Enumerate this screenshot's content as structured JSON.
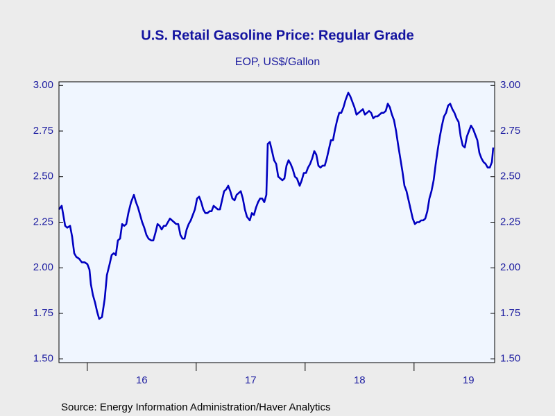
{
  "chart_data": {
    "type": "line",
    "title": "U.S. Retail Gasoline Price: Regular Grade",
    "subtitle": "EOP, US$/Gallon",
    "source": "Source:  Energy Information Administration/Haver Analytics",
    "color": "#0000c0",
    "xlim": [
      2015.74,
      2019.74
    ],
    "xticks": [
      {
        "value": 2016,
        "label": "16"
      },
      {
        "value": 2017,
        "label": "17"
      },
      {
        "value": 2018,
        "label": "18"
      },
      {
        "value": 2019,
        "label": "19"
      }
    ],
    "ylim": [
      1.48,
      3.02
    ],
    "yticks": [
      {
        "value": 1.5,
        "label": "1.50"
      },
      {
        "value": 1.75,
        "label": "1.75"
      },
      {
        "value": 2,
        "label": "2.00"
      },
      {
        "value": 2.25,
        "label": "2.25"
      },
      {
        "value": 2.5,
        "label": "2.50"
      },
      {
        "value": 2.75,
        "label": "2.75"
      },
      {
        "value": 3,
        "label": "3.00"
      }
    ],
    "y2lim": [
      1.48,
      3.02
    ],
    "y2ticks": [
      {
        "value": 1.5,
        "label": "1.50"
      },
      {
        "value": 1.75,
        "label": "1.75"
      },
      {
        "value": 2,
        "label": "2.00"
      },
      {
        "value": 2.25,
        "label": "2.25"
      },
      {
        "value": 2.5,
        "label": "2.50"
      },
      {
        "value": 2.75,
        "label": "2.75"
      },
      {
        "value": 3,
        "label": "3.00"
      }
    ],
    "x": [
      2015.74,
      2015.765,
      2015.797,
      2015.816,
      2015.842,
      2015.861,
      2015.88,
      2015.899,
      2015.925,
      2015.95,
      2015.976,
      2016.001,
      2016.02,
      2016.033,
      2016.052,
      2016.071,
      2016.09,
      2016.109,
      2016.135,
      2016.16,
      2016.18,
      2016.205,
      2016.224,
      2016.243,
      2016.262,
      2016.281,
      2016.301,
      2016.32,
      2016.339,
      2016.358,
      2016.377,
      2016.402,
      2016.428,
      2016.447,
      2016.466,
      2016.485,
      2016.504,
      2016.523,
      2016.543,
      2016.562,
      2016.587,
      2016.606,
      2016.625,
      2016.645,
      2016.664,
      2016.683,
      2016.702,
      2016.721,
      2016.74,
      2016.759,
      2016.778,
      2016.797,
      2016.816,
      2016.835,
      2016.855,
      2016.874,
      2016.893,
      2016.912,
      2016.931,
      2016.95,
      2016.969,
      2016.988,
      2017.008,
      2017.027,
      2017.046,
      2017.065,
      2017.084,
      2017.103,
      2017.122,
      2017.141,
      2017.16,
      2017.18,
      2017.199,
      2017.218,
      2017.237,
      2017.256,
      2017.275,
      2017.294,
      2017.313,
      2017.332,
      2017.352,
      2017.371,
      2017.39,
      2017.409,
      2017.428,
      2017.447,
      2017.466,
      2017.492,
      2017.511,
      2017.53,
      2017.549,
      2017.568,
      2017.587,
      2017.606,
      2017.625,
      2017.644,
      2017.657,
      2017.676,
      2017.696,
      2017.715,
      2017.734,
      2017.753,
      2017.772,
      2017.791,
      2017.81,
      2017.829,
      2017.848,
      2017.867,
      2017.887,
      2017.906,
      2017.925,
      2017.95,
      2017.969,
      2017.988,
      2018.008,
      2018.027,
      2018.046,
      2018.065,
      2018.084,
      2018.103,
      2018.122,
      2018.141,
      2018.16,
      2018.18,
      2018.199,
      2018.218,
      2018.237,
      2018.256,
      2018.275,
      2018.294,
      2018.313,
      2018.332,
      2018.352,
      2018.371,
      2018.396,
      2018.415,
      2018.434,
      2018.453,
      2018.472,
      2018.491,
      2018.511,
      2018.53,
      2018.549,
      2018.568,
      2018.587,
      2018.606,
      2018.625,
      2018.644,
      2018.664,
      2018.683,
      2018.702,
      2018.721,
      2018.74,
      2018.759,
      2018.778,
      2018.797,
      2018.816,
      2018.835,
      2018.855,
      2018.874,
      2018.893,
      2018.912,
      2018.931,
      2018.95,
      2018.969,
      2018.988,
      2019.008,
      2019.027,
      2019.046,
      2019.065,
      2019.084,
      2019.103,
      2019.122,
      2019.141,
      2019.16,
      2019.18,
      2019.199,
      2019.218,
      2019.237,
      2019.256,
      2019.275,
      2019.294,
      2019.313,
      2019.332,
      2019.352,
      2019.371,
      2019.39,
      2019.409,
      2019.428,
      2019.447,
      2019.466,
      2019.485,
      2019.504,
      2019.523,
      2019.543,
      2019.562,
      2019.581,
      2019.6,
      2019.619,
      2019.638,
      2019.657,
      2019.676,
      2019.696,
      2019.715,
      2019.727
    ],
    "values": [
      2.32,
      2.34,
      2.23,
      2.22,
      2.23,
      2.17,
      2.08,
      2.06,
      2.05,
      2.03,
      2.03,
      2.02,
      1.99,
      1.91,
      1.85,
      1.81,
      1.76,
      1.72,
      1.73,
      1.83,
      1.96,
      2.02,
      2.07,
      2.08,
      2.07,
      2.15,
      2.16,
      2.24,
      2.23,
      2.24,
      2.3,
      2.36,
      2.4,
      2.36,
      2.33,
      2.29,
      2.25,
      2.22,
      2.18,
      2.16,
      2.15,
      2.15,
      2.19,
      2.24,
      2.23,
      2.21,
      2.23,
      2.23,
      2.25,
      2.27,
      2.26,
      2.25,
      2.24,
      2.24,
      2.18,
      2.16,
      2.16,
      2.21,
      2.24,
      2.26,
      2.29,
      2.32,
      2.38,
      2.39,
      2.36,
      2.32,
      2.3,
      2.3,
      2.31,
      2.31,
      2.34,
      2.33,
      2.32,
      2.32,
      2.37,
      2.42,
      2.43,
      2.45,
      2.42,
      2.38,
      2.37,
      2.4,
      2.41,
      2.42,
      2.38,
      2.32,
      2.28,
      2.26,
      2.3,
      2.29,
      2.33,
      2.36,
      2.38,
      2.38,
      2.36,
      2.4,
      2.68,
      2.69,
      2.64,
      2.59,
      2.57,
      2.5,
      2.49,
      2.48,
      2.49,
      2.56,
      2.59,
      2.57,
      2.54,
      2.5,
      2.49,
      2.45,
      2.48,
      2.52,
      2.52,
      2.55,
      2.57,
      2.6,
      2.64,
      2.62,
      2.56,
      2.55,
      2.56,
      2.56,
      2.6,
      2.65,
      2.7,
      2.7,
      2.76,
      2.81,
      2.85,
      2.85,
      2.88,
      2.92,
      2.96,
      2.94,
      2.91,
      2.88,
      2.84,
      2.85,
      2.86,
      2.87,
      2.84,
      2.85,
      2.86,
      2.85,
      2.82,
      2.83,
      2.83,
      2.84,
      2.85,
      2.85,
      2.86,
      2.9,
      2.88,
      2.84,
      2.81,
      2.75,
      2.67,
      2.6,
      2.53,
      2.45,
      2.42,
      2.37,
      2.32,
      2.27,
      2.24,
      2.25,
      2.25,
      2.26,
      2.26,
      2.27,
      2.31,
      2.38,
      2.42,
      2.48,
      2.57,
      2.65,
      2.72,
      2.78,
      2.83,
      2.85,
      2.89,
      2.9,
      2.87,
      2.85,
      2.82,
      2.8,
      2.72,
      2.67,
      2.66,
      2.72,
      2.75,
      2.78,
      2.76,
      2.73,
      2.7,
      2.63,
      2.6,
      2.58,
      2.57,
      2.55,
      2.55,
      2.58,
      2.66
    ]
  }
}
